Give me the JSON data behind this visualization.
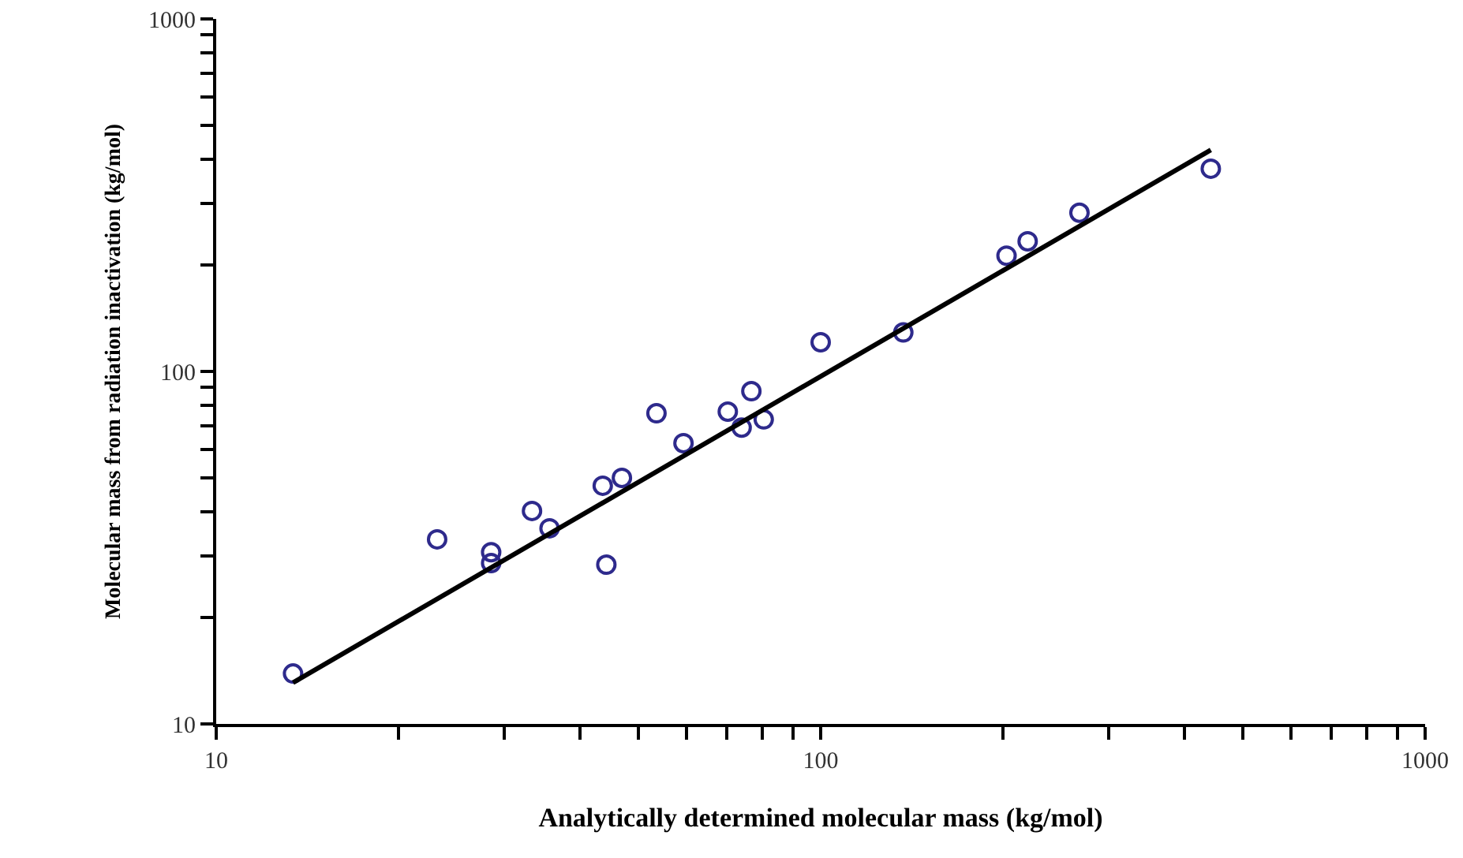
{
  "chart_data": {
    "type": "scatter",
    "xlabel": "Analytically determined molecular mass (kg/mol)",
    "ylabel": "Molecular mass from radiation inactivation (kg/mol)",
    "log": "xy",
    "xlim": [
      10,
      1000
    ],
    "ylim": [
      10,
      1000
    ],
    "xticks": [
      10,
      {
        "value": 20,
        "label": null
      },
      {
        "value": 30,
        "label": null
      },
      {
        "value": 40,
        "label": null
      },
      {
        "value": 50,
        "label": null
      },
      {
        "value": 60,
        "label": null
      },
      {
        "value": 70,
        "label": null
      },
      {
        "value": 80,
        "label": null
      },
      {
        "value": 90,
        "label": null
      },
      100,
      {
        "value": 200,
        "label": null
      },
      {
        "value": 300,
        "label": null
      },
      {
        "value": 400,
        "label": null
      },
      {
        "value": 500,
        "label": null
      },
      {
        "value": 600,
        "label": null
      },
      {
        "value": 700,
        "label": null
      },
      {
        "value": 800,
        "label": null
      },
      {
        "value": 900,
        "label": null
      },
      1000
    ],
    "yticks": [
      10,
      {
        "value": 20,
        "label": null
      },
      {
        "value": 30,
        "label": null
      },
      {
        "value": 40,
        "label": null
      },
      {
        "value": 50,
        "label": null
      },
      {
        "value": 60,
        "label": null
      },
      {
        "value": 70,
        "label": null
      },
      {
        "value": 80,
        "label": null
      },
      {
        "value": 90,
        "label": null
      },
      100,
      {
        "value": 200,
        "label": null
      },
      {
        "value": 300,
        "label": null
      },
      {
        "value": 400,
        "label": null
      },
      {
        "value": 500,
        "label": null
      },
      {
        "value": 600,
        "label": null
      },
      {
        "value": 700,
        "label": null
      },
      {
        "value": 800,
        "label": null
      },
      {
        "value": 900,
        "label": null
      },
      1000
    ],
    "series": [
      {
        "color": "#2e2a8c",
        "marker": "circle",
        "x": [
          13.4,
          23.2,
          28.5,
          28.5,
          33.3,
          35.6,
          43.6,
          44.2,
          46.9,
          53.5,
          59.3,
          70.2,
          74.0,
          76.8,
          80.5,
          100,
          137,
          203,
          220,
          268,
          442
        ],
        "values": [
          13.9,
          33.4,
          30.7,
          28.6,
          40.2,
          35.9,
          47.4,
          28.3,
          49.9,
          76.1,
          62.6,
          76.9,
          69.3,
          87.9,
          73.1,
          121,
          129,
          213,
          234,
          282,
          376
        ]
      },
      {
        "type": "line",
        "color": "#000000",
        "marker": "none",
        "line_style": "solid",
        "x": [
          13.4,
          442
        ],
        "values": [
          13.1,
          425
        ]
      }
    ]
  }
}
